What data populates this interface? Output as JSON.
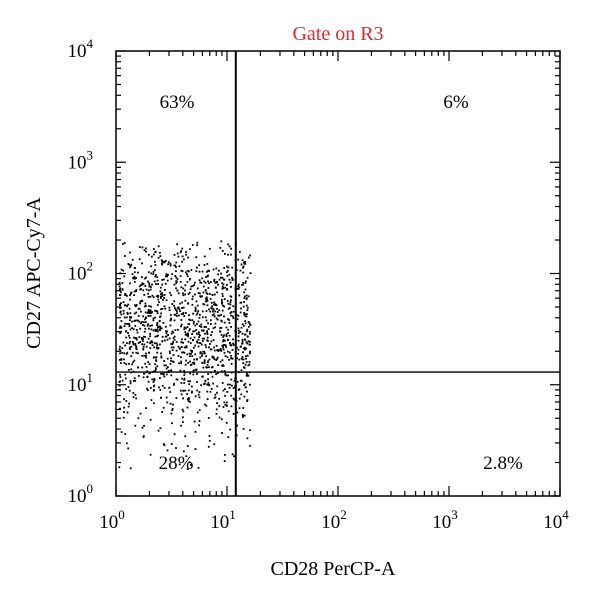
{
  "chart_data": {
    "type": "scatter",
    "title": "Gate on R3",
    "title_color": "#e8262a",
    "xlabel": "CD28 PerCP-A",
    "ylabel": "CD27 APC-Cy7-A",
    "x_scale": "log",
    "y_scale": "log",
    "xlim": [
      1,
      10000
    ],
    "ylim": [
      1,
      10000
    ],
    "x_ticks": [
      {
        "base": "10",
        "exp": "0"
      },
      {
        "base": "10",
        "exp": "1"
      },
      {
        "base": "10",
        "exp": "2"
      },
      {
        "base": "10",
        "exp": "3"
      },
      {
        "base": "10",
        "exp": "4"
      }
    ],
    "y_ticks": [
      {
        "base": "10",
        "exp": "0"
      },
      {
        "base": "10",
        "exp": "1"
      },
      {
        "base": "10",
        "exp": "2"
      },
      {
        "base": "10",
        "exp": "3"
      },
      {
        "base": "10",
        "exp": "4"
      }
    ],
    "gate_x": 12,
    "gate_y": 13,
    "quadrants": {
      "upper_left": "63%",
      "upper_right": "6%",
      "lower_left": "28%",
      "lower_right": "2.8%"
    },
    "point_color": "#000000",
    "grid": false,
    "population": {
      "count": 1400,
      "x_range": [
        1.05,
        16
      ],
      "y_center": 30,
      "y_spread_log10": 0.42,
      "y_range": [
        1.2,
        200
      ]
    }
  }
}
